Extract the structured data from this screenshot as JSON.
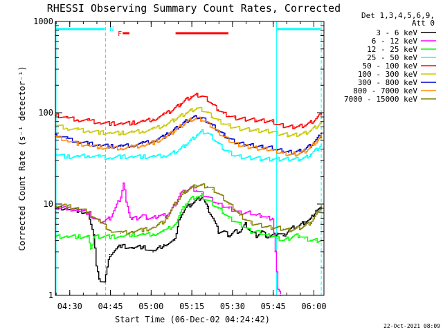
{
  "chart_data": {
    "type": "line",
    "title": "RHESSI Observing Summary Count Rates, Corrected",
    "xlabel": "Start Time (06-Dec-02 04:24:42)",
    "ylabel": "Corrected Count Rate (s⁻¹ detector⁻¹)",
    "yscale": "log",
    "ylim": [
      1,
      1000
    ],
    "xlim_minutes": [
      0,
      99
    ],
    "x_ticks": [
      {
        "label": "04:30",
        "minute": 5.3
      },
      {
        "label": "04:45",
        "minute": 20.3
      },
      {
        "label": "05:00",
        "minute": 35.3
      },
      {
        "label": "05:15",
        "minute": 50.3
      },
      {
        "label": "05:30",
        "minute": 65.3
      },
      {
        "label": "05:45",
        "minute": 80.3
      },
      {
        "label": "06:00",
        "minute": 95.3
      }
    ],
    "y_ticks": [
      {
        "label": "1",
        "value": 1
      },
      {
        "label": "10",
        "value": 10
      },
      {
        "label": "100",
        "value": 100
      },
      {
        "label": "1000",
        "value": 1000
      }
    ],
    "legend_header": [
      "Det 1,3,4,5,6,9,",
      "Att 0"
    ],
    "series": [
      {
        "name": "3 - 6 keV",
        "color": "#000000",
        "x": [
          0,
          4,
          8,
          12,
          14,
          15,
          16,
          18,
          20,
          24,
          28,
          32,
          36,
          40,
          44,
          46,
          48,
          50,
          52,
          54,
          56,
          58,
          60,
          62,
          64,
          66,
          68,
          70,
          72,
          74,
          76,
          78,
          80,
          82,
          84,
          86,
          88,
          90,
          92,
          94,
          96,
          98
        ],
        "y": [
          9,
          9,
          8.5,
          8,
          4.5,
          2.2,
          1.5,
          1.4,
          2.8,
          3.5,
          3.3,
          3.4,
          3.0,
          3.6,
          4.0,
          7.5,
          9,
          10,
          11,
          12,
          9,
          7,
          5,
          5,
          4.5,
          5,
          5,
          6,
          5,
          4.5,
          5,
          4.4,
          4.5,
          4.8,
          4.5,
          5.2,
          5.6,
          5.8,
          6.4,
          6.8,
          8.5,
          9
        ]
      },
      {
        "name": "6 - 12 keV",
        "color": "#ff00ff",
        "x": [
          0,
          4,
          8,
          12,
          14,
          16,
          18,
          20,
          22,
          24,
          25,
          26,
          27,
          28,
          30,
          32,
          34,
          36,
          38,
          40,
          42,
          44,
          46,
          48,
          50,
          52,
          54,
          56,
          58,
          60,
          62,
          64,
          66,
          68,
          70,
          72,
          74,
          76,
          78,
          80,
          81,
          82,
          83
        ],
        "y": [
          9,
          9,
          8.5,
          8,
          7,
          6.5,
          6.5,
          7,
          9,
          12,
          17,
          11,
          8,
          7,
          7,
          7.5,
          7,
          7,
          7.5,
          7.5,
          8,
          10,
          13,
          14,
          15,
          14,
          13,
          12,
          11,
          10,
          9.5,
          9,
          8.5,
          8,
          8,
          8,
          7.5,
          7.5,
          7,
          7,
          3,
          1.2,
          1
        ]
      },
      {
        "name": "12 - 25 keV",
        "color": "#00ff00",
        "x": [
          0,
          4,
          8,
          12,
          13,
          14,
          16,
          20,
          24,
          28,
          32,
          36,
          40,
          44,
          46,
          48,
          50,
          52,
          54,
          56,
          58,
          60,
          62,
          64,
          66,
          68,
          70,
          72,
          74,
          76,
          78,
          80,
          82,
          84,
          86,
          88,
          90,
          92,
          94,
          96,
          98
        ],
        "y": [
          4.4,
          4.4,
          4.4,
          4.4,
          3.2,
          4.4,
          4.4,
          4.4,
          4.4,
          4.6,
          4.6,
          4.7,
          5,
          6,
          8,
          10,
          11.5,
          12,
          12,
          11,
          10,
          9,
          8,
          7,
          6.5,
          6,
          5.5,
          5,
          5,
          4.8,
          4.5,
          4.5,
          4.2,
          4.0,
          4.2,
          4.5,
          4.5,
          4.2,
          4.0,
          4.0,
          4.0
        ]
      },
      {
        "name": "25 - 50 keV",
        "color": "#00ffff",
        "x": [
          0,
          4,
          8,
          12,
          16,
          20,
          24,
          28,
          32,
          36,
          40,
          42,
          44,
          46,
          48,
          50,
          52,
          54,
          56,
          58,
          60,
          62,
          64,
          66,
          68,
          70,
          72,
          74,
          76,
          78,
          80,
          82,
          84,
          86,
          88,
          90,
          92,
          94,
          96,
          98
        ],
        "y": [
          35,
          33,
          33,
          34,
          33,
          32,
          33,
          33,
          33,
          33,
          34,
          35,
          37,
          40,
          45,
          50,
          57,
          62,
          60,
          53,
          46,
          40,
          37,
          34,
          33,
          32,
          32,
          32,
          31,
          31,
          31,
          31,
          31,
          31,
          31,
          31,
          32,
          35,
          39,
          45
        ]
      },
      {
        "name": "50 - 100 keV",
        "color": "#ff0000",
        "x": [
          0,
          4,
          8,
          12,
          16,
          20,
          24,
          28,
          32,
          36,
          40,
          42,
          44,
          46,
          48,
          50,
          52,
          54,
          56,
          58,
          60,
          62,
          64,
          66,
          68,
          70,
          72,
          74,
          76,
          78,
          80,
          82,
          84,
          86,
          88,
          90,
          92,
          94,
          96,
          98
        ],
        "y": [
          94,
          88,
          84,
          82,
          78,
          76,
          76,
          77,
          80,
          85,
          95,
          103,
          112,
          125,
          138,
          150,
          156,
          152,
          140,
          122,
          108,
          98,
          92,
          88,
          86,
          85,
          84,
          83,
          82,
          81,
          80,
          74,
          72,
          70,
          70,
          71,
          73,
          78,
          86,
          98
        ]
      },
      {
        "name": "100 - 300 keV",
        "color": "#c8c800",
        "x": [
          0,
          4,
          8,
          12,
          16,
          20,
          24,
          28,
          32,
          36,
          40,
          42,
          44,
          46,
          48,
          50,
          52,
          54,
          56,
          58,
          60,
          62,
          64,
          66,
          68,
          70,
          72,
          74,
          76,
          78,
          80,
          82,
          84,
          86,
          88,
          90,
          92,
          94,
          96,
          98
        ],
        "y": [
          73,
          68,
          65,
          63,
          61,
          60,
          60,
          61,
          63,
          66,
          73,
          78,
          85,
          92,
          99,
          106,
          112,
          108,
          100,
          90,
          82,
          76,
          72,
          69,
          67,
          66,
          65,
          64,
          63,
          63,
          62,
          59,
          58,
          57,
          57,
          58,
          60,
          64,
          70,
          79
        ]
      },
      {
        "name": "300 - 800 keV",
        "color": "#0000cc",
        "x": [
          0,
          4,
          8,
          12,
          16,
          20,
          24,
          28,
          32,
          36,
          40,
          42,
          44,
          46,
          48,
          50,
          52,
          54,
          56,
          58,
          60,
          62,
          64,
          66,
          68,
          70,
          72,
          74,
          76,
          78,
          80,
          82,
          84,
          86,
          88,
          90,
          92,
          94,
          96,
          98
        ],
        "y": [
          58,
          52,
          48,
          46,
          44,
          43,
          43,
          44,
          46,
          49,
          55,
          60,
          66,
          73,
          80,
          87,
          90,
          87,
          80,
          72,
          64,
          57,
          52,
          48,
          46,
          45,
          44,
          43,
          42,
          42,
          41,
          39,
          38,
          37,
          37,
          38,
          40,
          44,
          50,
          59
        ]
      },
      {
        "name": "800 - 7000 keV",
        "color": "#ff8800",
        "x": [
          0,
          4,
          8,
          12,
          16,
          20,
          24,
          28,
          32,
          36,
          40,
          42,
          44,
          46,
          48,
          50,
          52,
          54,
          56,
          58,
          60,
          62,
          64,
          66,
          68,
          70,
          72,
          74,
          76,
          78,
          80,
          82,
          84,
          86,
          88,
          90,
          92,
          94,
          96,
          98
        ],
        "y": [
          55,
          50,
          46,
          44,
          42,
          41,
          41,
          42,
          44,
          47,
          53,
          58,
          64,
          71,
          78,
          84,
          87,
          84,
          77,
          69,
          61,
          55,
          50,
          46,
          44,
          43,
          42,
          41,
          40,
          40,
          39,
          37,
          36,
          35,
          35,
          36,
          38,
          42,
          48,
          56
        ]
      },
      {
        "name": "7000 - 15000 keV",
        "color": "#808000",
        "x": [
          0,
          4,
          8,
          12,
          16,
          20,
          24,
          28,
          32,
          36,
          40,
          42,
          44,
          46,
          48,
          50,
          52,
          54,
          56,
          58,
          60,
          62,
          64,
          66,
          68,
          70,
          72,
          74,
          76,
          78,
          80,
          82,
          84,
          86,
          88,
          90,
          92,
          94,
          96,
          98
        ],
        "y": [
          9.5,
          9.5,
          9.0,
          8.2,
          6.5,
          5.2,
          4.8,
          5.0,
          5.2,
          5.5,
          6.5,
          8,
          10,
          12,
          14,
          15,
          16,
          16,
          15.5,
          14.5,
          13,
          11.5,
          10,
          8.8,
          7.5,
          6.8,
          6.2,
          6.0,
          5.8,
          5.6,
          5.5,
          5.5,
          5.3,
          5.2,
          5.3,
          5.5,
          5.8,
          6.3,
          7.5,
          9.5
        ]
      }
    ],
    "annotations": [
      {
        "text": "N",
        "color": "#00ffff",
        "minute": 20.0
      },
      {
        "text": "F",
        "color": "#ff0000",
        "minute": 23.0
      }
    ],
    "night_markers": {
      "color": "#00ffff",
      "bars": [
        [
          0,
          18.5
        ],
        [
          81.3,
          98
        ]
      ],
      "dashed_lines": [
        18.5,
        98
      ],
      "solid_lines": [
        0,
        81.3
      ]
    },
    "flare_markers": {
      "color": "#ff0000",
      "bars": [
        [
          24.8,
          27.3
        ],
        [
          44.3,
          63.8
        ]
      ]
    }
  },
  "footer": {
    "date_stamp": "22-Oct-2021 08:09"
  },
  "colors": {
    "background": "#ffffff",
    "axis": "#000000"
  }
}
